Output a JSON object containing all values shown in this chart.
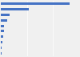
{
  "values": [
    44000,
    18000,
    5500,
    3900,
    2200,
    1800,
    1300,
    900,
    600,
    300
  ],
  "bar_color": "#4472c4",
  "background_color": "#f0f0f0",
  "grid_color": "#ffffff",
  "xlim": [
    0,
    50000
  ],
  "bar_height": 0.45,
  "figsize": [
    1.0,
    0.71
  ],
  "dpi": 100,
  "n_bars": 10
}
